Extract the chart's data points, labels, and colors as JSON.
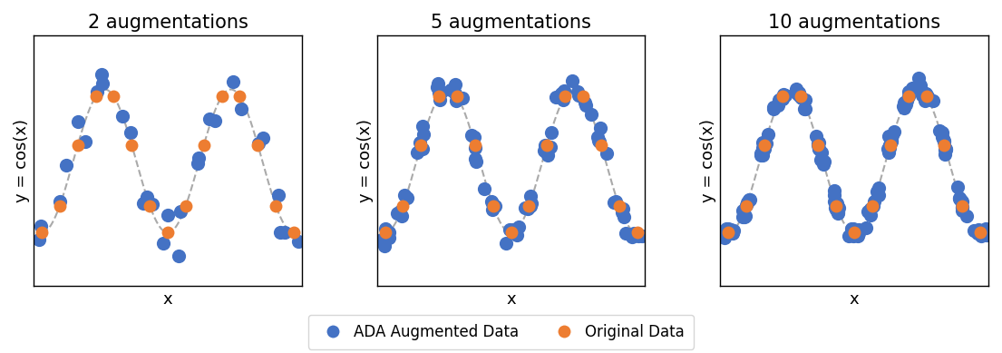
{
  "titles": [
    "2 augmentations",
    "5 augmentations",
    "10 augmentations"
  ],
  "xlabel": "x",
  "ylabel": "y = cos(x)",
  "blue_color": "#4472C4",
  "orange_color": "#ED7D31",
  "curve_color": "#AAAAAA",
  "n_original": 15,
  "augmentations": [
    2,
    5,
    10
  ],
  "x_range": [
    -3.14159,
    9.42478
  ],
  "legend_labels": [
    "ADA Augmented Data",
    "Original Data"
  ],
  "figsize": [
    11.05,
    3.89
  ],
  "dpi": 100,
  "marker_size_blue": 120,
  "marker_size_orange": 100,
  "spread_along": [
    0.3,
    0.22,
    0.18
  ],
  "spread_perp": [
    0.18,
    0.08,
    0.04
  ],
  "title_fontsize": 15,
  "axis_label_fontsize": 13,
  "legend_fontsize": 12
}
